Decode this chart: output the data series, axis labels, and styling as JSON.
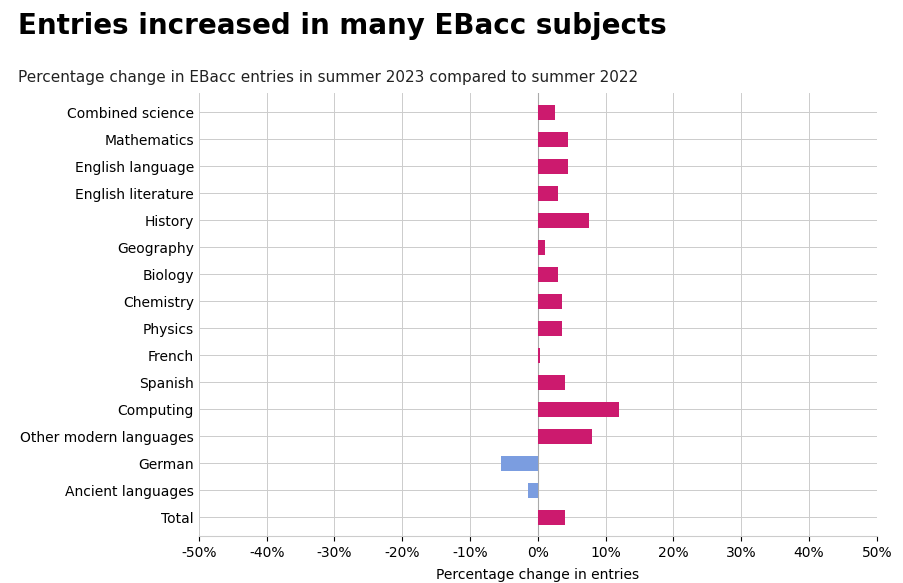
{
  "title": "Entries increased in many EBacc subjects",
  "subtitle": "Percentage change in EBacc entries in summer 2023 compared to summer 2022",
  "xlabel": "Percentage change in entries",
  "categories": [
    "Combined science",
    "Mathematics",
    "English language",
    "English literature",
    "History",
    "Geography",
    "Biology",
    "Chemistry",
    "Physics",
    "French",
    "Spanish",
    "Computing",
    "Other modern languages",
    "German",
    "Ancient languages",
    "Total"
  ],
  "values": [
    2.5,
    4.5,
    4.5,
    3.0,
    7.5,
    1.0,
    3.0,
    3.5,
    3.5,
    0.3,
    4.0,
    12.0,
    8.0,
    -5.5,
    -1.5,
    4.0
  ],
  "bar_colors": [
    "#cc1a6e",
    "#cc1a6e",
    "#cc1a6e",
    "#cc1a6e",
    "#cc1a6e",
    "#cc1a6e",
    "#cc1a6e",
    "#cc1a6e",
    "#cc1a6e",
    "#cc1a6e",
    "#cc1a6e",
    "#cc1a6e",
    "#cc1a6e",
    "#7b9de0",
    "#7b9de0",
    "#cc1a6e"
  ],
  "xlim": [
    -50,
    50
  ],
  "xticks": [
    -50,
    -40,
    -30,
    -20,
    -10,
    0,
    10,
    20,
    30,
    40,
    50
  ],
  "xtick_labels": [
    "-50%",
    "-40%",
    "-30%",
    "-20%",
    "-10%",
    "0%",
    "10%",
    "20%",
    "30%",
    "40%",
    "50%"
  ],
  "background_color": "#ffffff",
  "grid_color": "#cccccc",
  "title_fontsize": 20,
  "subtitle_fontsize": 11,
  "label_fontsize": 10,
  "tick_fontsize": 10
}
